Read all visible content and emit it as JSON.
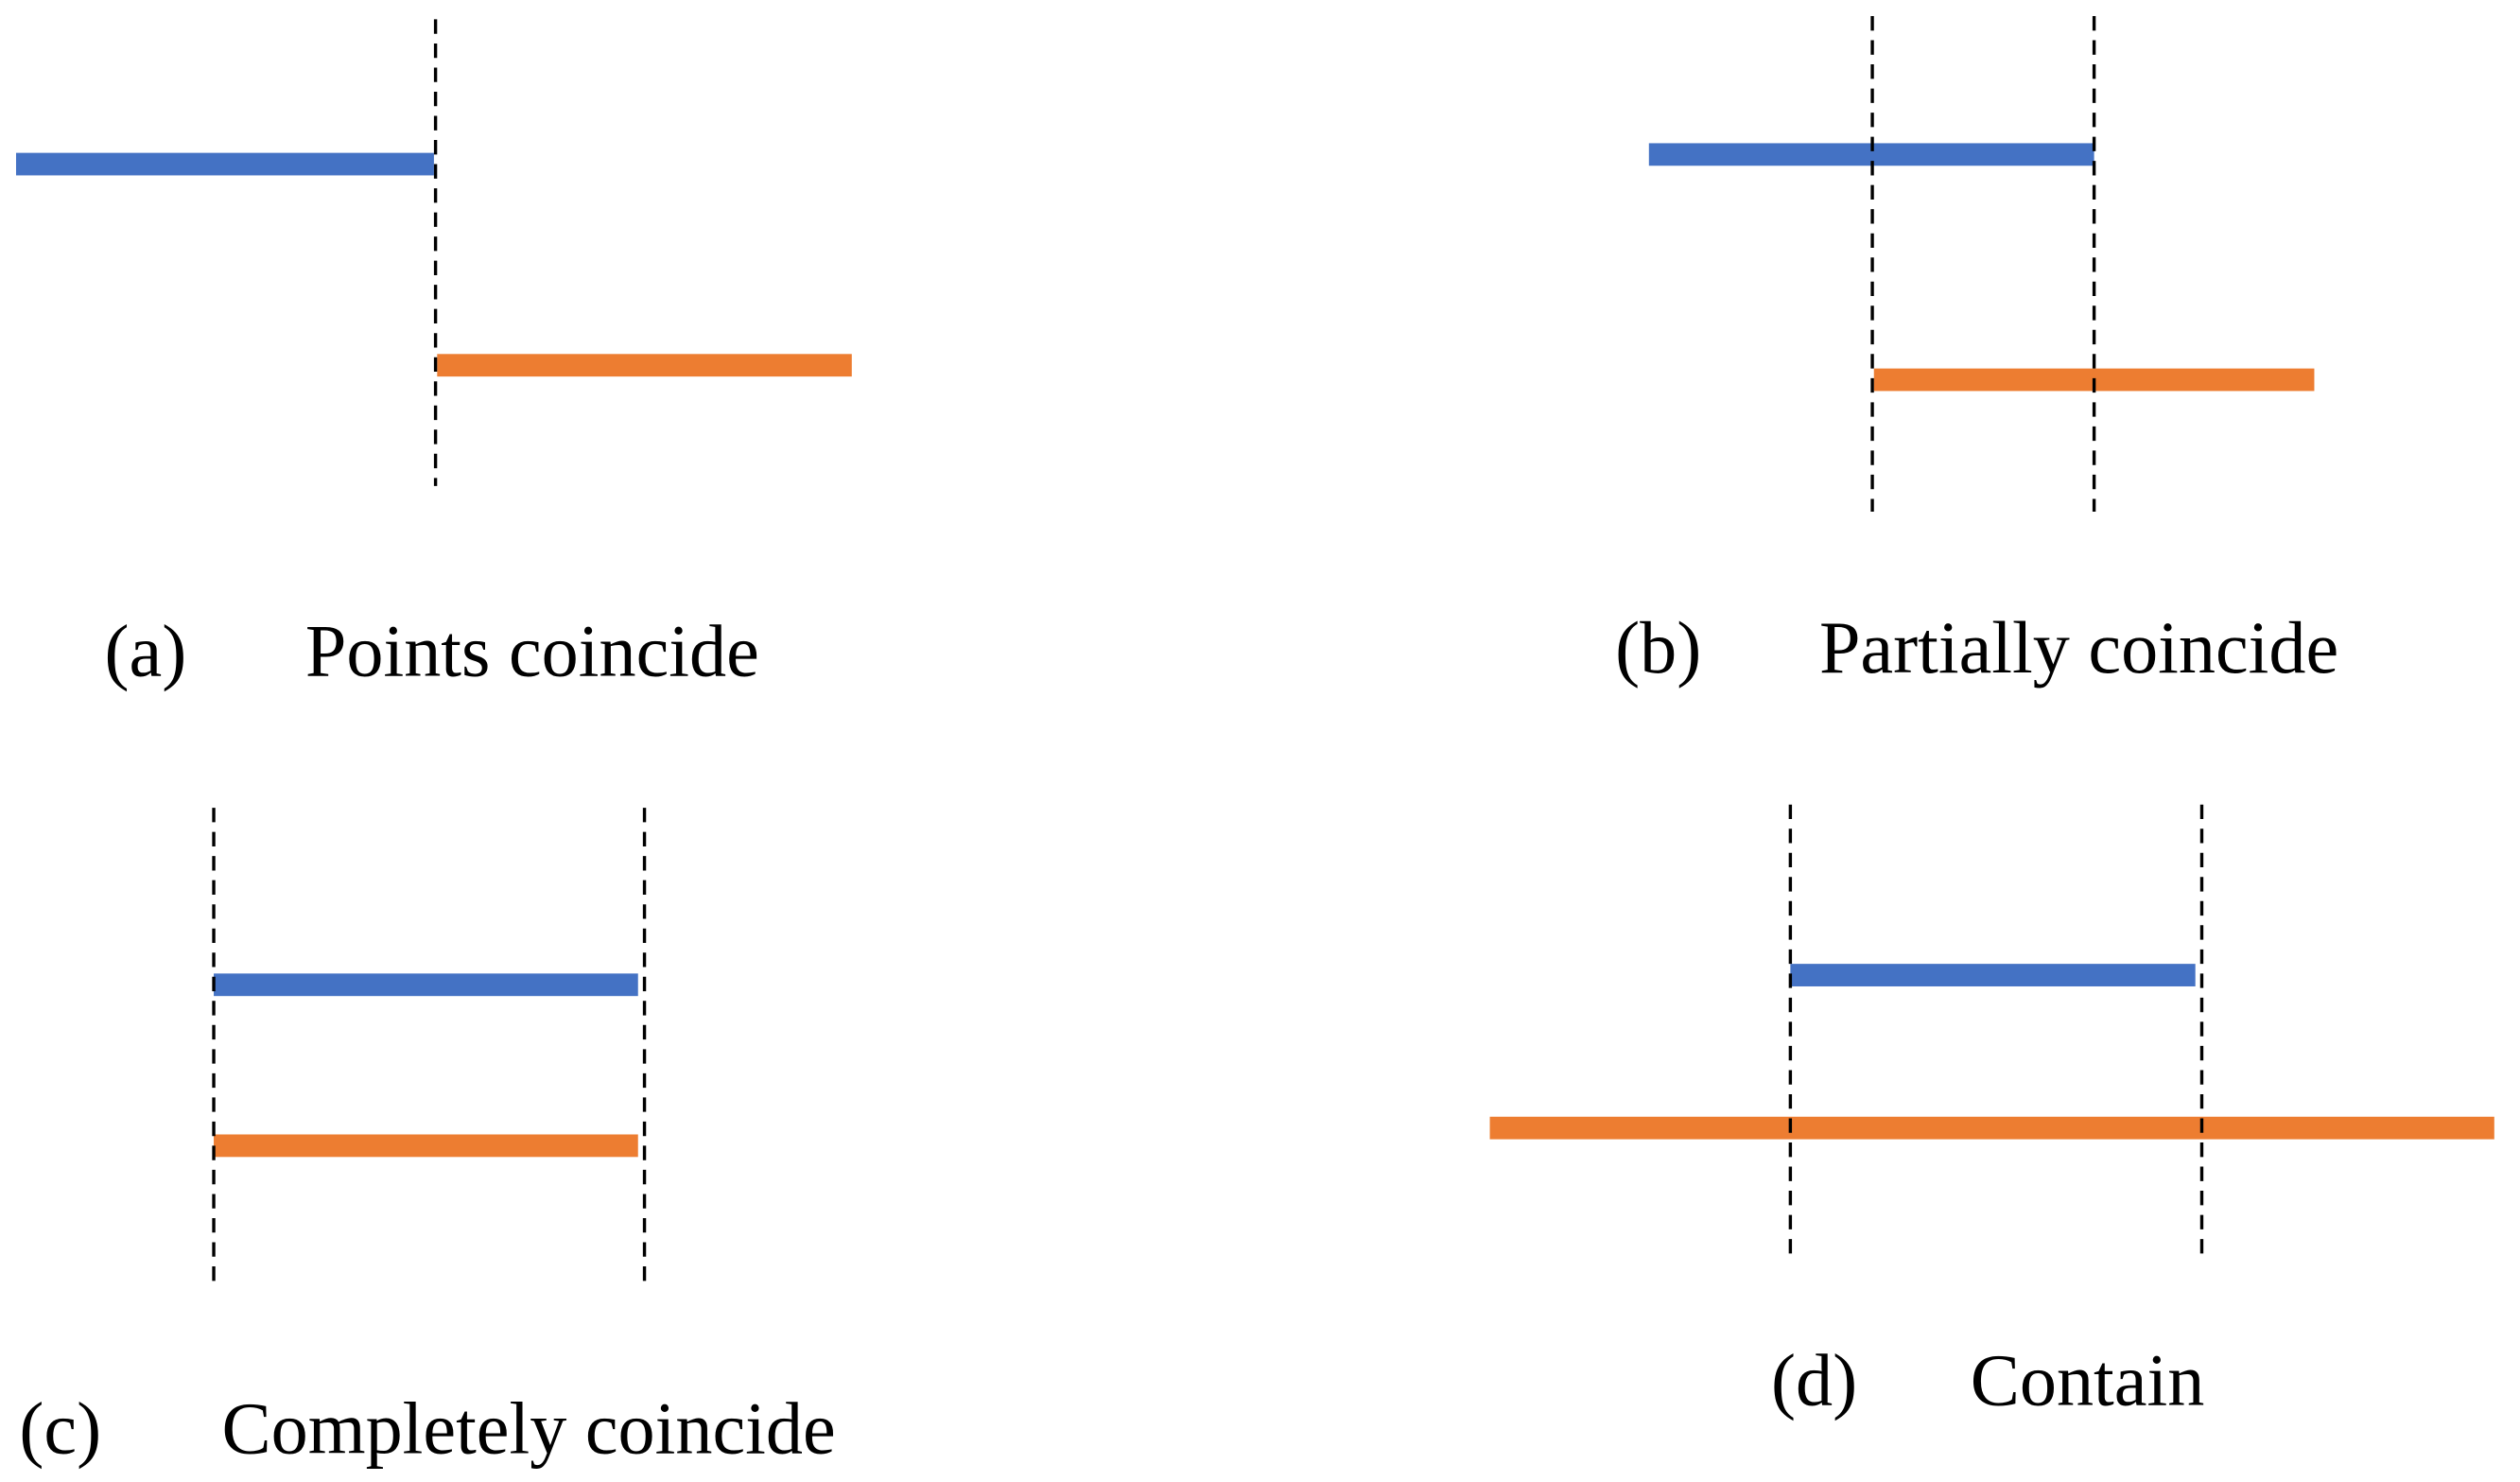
{
  "panels": [
    {
      "letter": "(a)",
      "caption": "Points coincide"
    },
    {
      "letter": "(b)",
      "caption": "Partially coincide"
    },
    {
      "letter": "(c)",
      "caption": "Completely coincide"
    },
    {
      "letter": "(d)",
      "caption": "Contain"
    }
  ]
}
